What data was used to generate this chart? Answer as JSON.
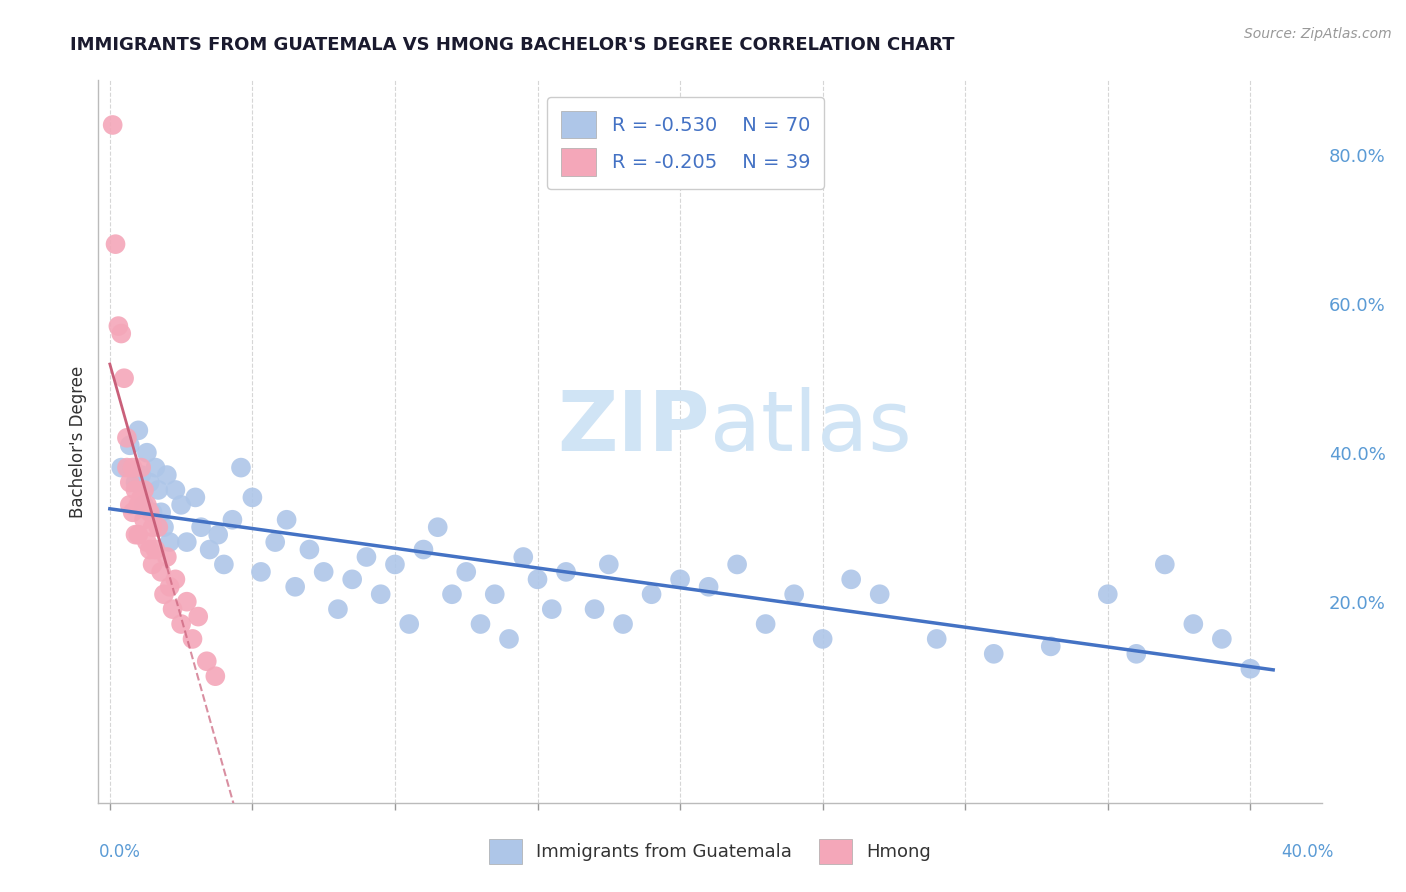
{
  "title": "IMMIGRANTS FROM GUATEMALA VS HMONG BACHELOR'S DEGREE CORRELATION CHART",
  "source": "Source: ZipAtlas.com",
  "ylabel": "Bachelor's Degree",
  "ytick_labels": [
    "20.0%",
    "40.0%",
    "60.0%",
    "80.0%"
  ],
  "ytick_values": [
    0.2,
    0.4,
    0.6,
    0.8
  ],
  "xlim": [
    -0.004,
    0.425
  ],
  "ylim": [
    -0.07,
    0.9
  ],
  "legend_blue_label": "Immigrants from Guatemala",
  "legend_pink_label": "Hmong",
  "blue_R": -0.53,
  "blue_N": 70,
  "pink_R": -0.205,
  "pink_N": 39,
  "blue_color": "#aec6e8",
  "blue_line_color": "#4472c4",
  "pink_color": "#f4a7b9",
  "pink_line_color": "#c9607a",
  "legend_text_color": "#4472c4",
  "watermark_color": "#d0e4f5",
  "background_color": "#ffffff",
  "blue_x": [
    0.004,
    0.007,
    0.009,
    0.01,
    0.011,
    0.012,
    0.013,
    0.014,
    0.015,
    0.016,
    0.017,
    0.018,
    0.019,
    0.02,
    0.021,
    0.023,
    0.025,
    0.027,
    0.03,
    0.032,
    0.035,
    0.038,
    0.04,
    0.043,
    0.046,
    0.05,
    0.053,
    0.058,
    0.062,
    0.065,
    0.07,
    0.075,
    0.08,
    0.085,
    0.09,
    0.095,
    0.1,
    0.105,
    0.11,
    0.115,
    0.12,
    0.125,
    0.13,
    0.135,
    0.14,
    0.145,
    0.15,
    0.155,
    0.16,
    0.17,
    0.175,
    0.18,
    0.19,
    0.2,
    0.21,
    0.22,
    0.23,
    0.24,
    0.25,
    0.26,
    0.27,
    0.29,
    0.31,
    0.33,
    0.35,
    0.36,
    0.37,
    0.38,
    0.39,
    0.4
  ],
  "blue_y": [
    0.38,
    0.41,
    0.36,
    0.43,
    0.37,
    0.33,
    0.4,
    0.36,
    0.32,
    0.38,
    0.35,
    0.32,
    0.3,
    0.37,
    0.28,
    0.35,
    0.33,
    0.28,
    0.34,
    0.3,
    0.27,
    0.29,
    0.25,
    0.31,
    0.38,
    0.34,
    0.24,
    0.28,
    0.31,
    0.22,
    0.27,
    0.24,
    0.19,
    0.23,
    0.26,
    0.21,
    0.25,
    0.17,
    0.27,
    0.3,
    0.21,
    0.24,
    0.17,
    0.21,
    0.15,
    0.26,
    0.23,
    0.19,
    0.24,
    0.19,
    0.25,
    0.17,
    0.21,
    0.23,
    0.22,
    0.25,
    0.17,
    0.21,
    0.15,
    0.23,
    0.21,
    0.15,
    0.13,
    0.14,
    0.21,
    0.13,
    0.25,
    0.17,
    0.15,
    0.11
  ],
  "pink_x": [
    0.001,
    0.002,
    0.003,
    0.004,
    0.005,
    0.006,
    0.006,
    0.007,
    0.007,
    0.008,
    0.008,
    0.009,
    0.009,
    0.01,
    0.01,
    0.011,
    0.011,
    0.012,
    0.012,
    0.013,
    0.013,
    0.014,
    0.014,
    0.015,
    0.015,
    0.016,
    0.017,
    0.018,
    0.019,
    0.02,
    0.021,
    0.022,
    0.023,
    0.025,
    0.027,
    0.029,
    0.031,
    0.034,
    0.037
  ],
  "pink_y": [
    0.84,
    0.68,
    0.57,
    0.56,
    0.5,
    0.42,
    0.38,
    0.36,
    0.33,
    0.32,
    0.38,
    0.35,
    0.29,
    0.33,
    0.29,
    0.38,
    0.34,
    0.35,
    0.31,
    0.33,
    0.28,
    0.32,
    0.27,
    0.3,
    0.25,
    0.27,
    0.3,
    0.24,
    0.21,
    0.26,
    0.22,
    0.19,
    0.23,
    0.17,
    0.2,
    0.15,
    0.18,
    0.12,
    0.1
  ]
}
